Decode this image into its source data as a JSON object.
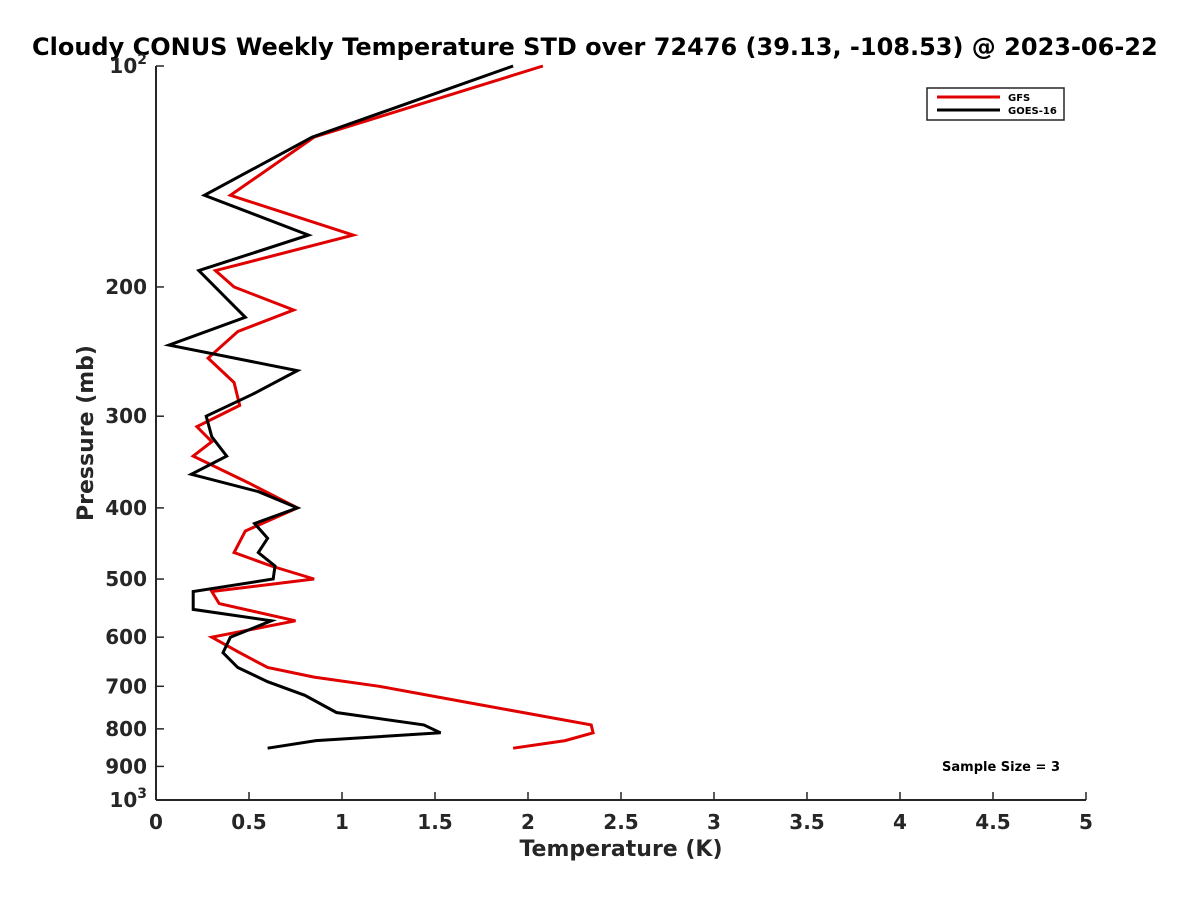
{
  "chart_data": {
    "type": "line",
    "title": "Cloudy CONUS Weekly Temperature STD over 72476 (39.13, -108.53) @ 2023-06-22",
    "xlabel": "Temperature (K)",
    "ylabel": "Pressure (mb)",
    "xlim": [
      0,
      5
    ],
    "ylim": [
      100,
      1000
    ],
    "yscale": "log",
    "yreversed": true,
    "grid": false,
    "legend_position": "top-right",
    "x_ticks": [
      "0",
      "0.5",
      "1",
      "1.5",
      "2",
      "2.5",
      "3",
      "3.5",
      "4",
      "4.5",
      "5"
    ],
    "y_ticks": [
      {
        "value": 100,
        "base": "10",
        "exp": "2"
      },
      {
        "value": 200,
        "label": "200"
      },
      {
        "value": 300,
        "label": "300"
      },
      {
        "value": 400,
        "label": "400"
      },
      {
        "value": 500,
        "label": "500"
      },
      {
        "value": 600,
        "label": "600"
      },
      {
        "value": 700,
        "label": "700"
      },
      {
        "value": 800,
        "label": "800"
      },
      {
        "value": 900,
        "label": "900"
      },
      {
        "value": 1000,
        "base": "10",
        "exp": "3"
      }
    ],
    "annotation": "Sample Size = 3",
    "series": [
      {
        "name": "GFS",
        "color": "#e00000",
        "points": [
          [
            2.08,
            100
          ],
          [
            0.85,
            125
          ],
          [
            0.4,
            150
          ],
          [
            1.06,
            170
          ],
          [
            0.32,
            190
          ],
          [
            0.42,
            200
          ],
          [
            0.74,
            215
          ],
          [
            0.44,
            230
          ],
          [
            0.28,
            250
          ],
          [
            0.42,
            270
          ],
          [
            0.45,
            290
          ],
          [
            0.22,
            310
          ],
          [
            0.3,
            325
          ],
          [
            0.2,
            340
          ],
          [
            0.5,
            370
          ],
          [
            0.76,
            400
          ],
          [
            0.48,
            430
          ],
          [
            0.42,
            460
          ],
          [
            0.62,
            480
          ],
          [
            0.85,
            500
          ],
          [
            0.3,
            520
          ],
          [
            0.34,
            540
          ],
          [
            0.75,
            570
          ],
          [
            0.3,
            600
          ],
          [
            0.45,
            630
          ],
          [
            0.6,
            660
          ],
          [
            0.85,
            680
          ],
          [
            1.2,
            700
          ],
          [
            1.72,
            740
          ],
          [
            2.34,
            790
          ],
          [
            2.35,
            810
          ],
          [
            2.2,
            830
          ],
          [
            1.92,
            850
          ]
        ]
      },
      {
        "name": "GOES-16",
        "color": "#000000",
        "points": [
          [
            1.92,
            100
          ],
          [
            0.84,
            125
          ],
          [
            0.26,
            150
          ],
          [
            0.82,
            170
          ],
          [
            0.23,
            190
          ],
          [
            0.48,
            220
          ],
          [
            0.07,
            240
          ],
          [
            0.76,
            260
          ],
          [
            0.52,
            280
          ],
          [
            0.27,
            300
          ],
          [
            0.3,
            320
          ],
          [
            0.38,
            340
          ],
          [
            0.19,
            360
          ],
          [
            0.55,
            380
          ],
          [
            0.76,
            400
          ],
          [
            0.53,
            420
          ],
          [
            0.6,
            440
          ],
          [
            0.55,
            460
          ],
          [
            0.64,
            480
          ],
          [
            0.63,
            500
          ],
          [
            0.2,
            520
          ],
          [
            0.2,
            550
          ],
          [
            0.62,
            570
          ],
          [
            0.4,
            600
          ],
          [
            0.36,
            630
          ],
          [
            0.44,
            660
          ],
          [
            0.6,
            690
          ],
          [
            0.8,
            720
          ],
          [
            0.97,
            760
          ],
          [
            1.44,
            790
          ],
          [
            1.53,
            810
          ],
          [
            0.86,
            830
          ],
          [
            0.6,
            850
          ]
        ]
      }
    ]
  }
}
